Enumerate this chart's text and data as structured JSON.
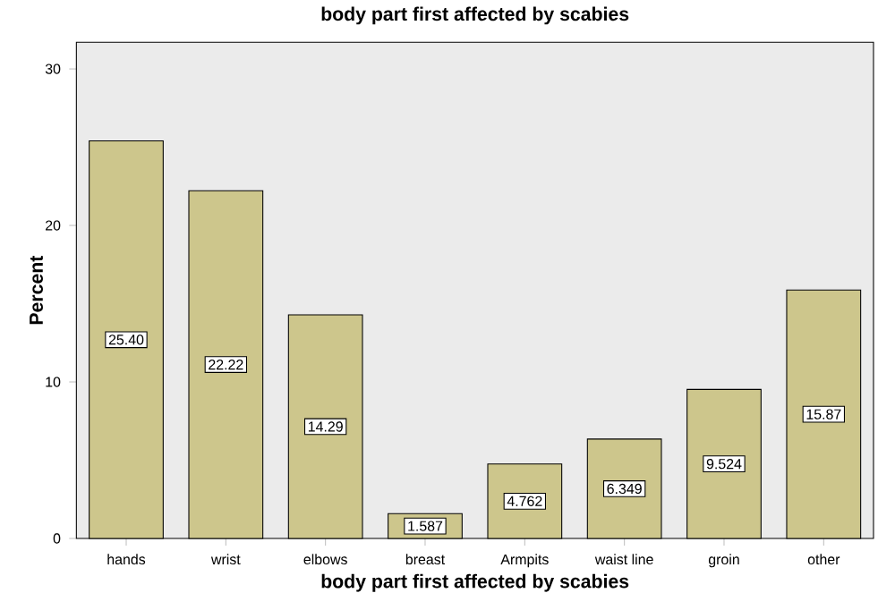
{
  "chart_data": {
    "type": "bar",
    "title": "body part first affected by scabies",
    "xlabel": "body part first affected by scabies",
    "ylabel": "Percent",
    "categories": [
      "hands",
      "wrist",
      "elbows",
      "breast",
      "Armpits",
      "waist line",
      "groin",
      "other"
    ],
    "values": [
      25.4,
      22.22,
      14.29,
      1.587,
      4.762,
      6.349,
      9.524,
      15.87
    ],
    "value_labels": [
      "25.40",
      "22.22",
      "14.29",
      "1.587",
      "4.762",
      "6.349",
      "9.524",
      "15.87"
    ],
    "color": "#cdc68c",
    "ylim": [
      0,
      31.7
    ],
    "yticks": [
      0,
      10,
      20,
      30
    ]
  }
}
